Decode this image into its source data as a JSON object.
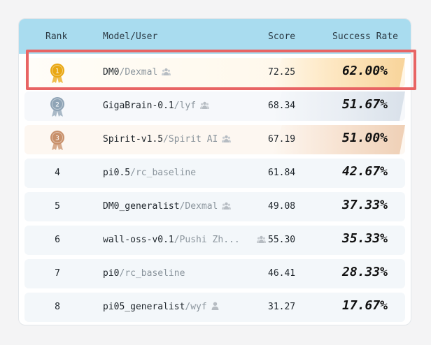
{
  "table": {
    "headers": {
      "rank": "Rank",
      "model": "Model/User",
      "score": "Score",
      "success_rate": "Success Rate"
    },
    "rows": [
      {
        "rank": "1",
        "model": "DM0",
        "org": "Dexmal",
        "icon": "team-icon",
        "score": "72.25",
        "rate": "62.00%",
        "medal": "gold"
      },
      {
        "rank": "2",
        "model": "GigaBrain-0.1",
        "org": "lyf",
        "icon": "team-icon",
        "score": "68.34",
        "rate": "51.67%",
        "medal": "silver"
      },
      {
        "rank": "3",
        "model": "Spirit-v1.5",
        "org": "Spirit AI",
        "icon": "team-icon",
        "score": "67.19",
        "rate": "51.00%",
        "medal": "bronze"
      },
      {
        "rank": "4",
        "model": "pi0.5",
        "org": "rc_baseline",
        "icon": "",
        "score": "61.84",
        "rate": "42.67%",
        "medal": ""
      },
      {
        "rank": "5",
        "model": "DM0_generalist",
        "org": "Dexmal",
        "icon": "team-icon",
        "score": "49.08",
        "rate": "37.33%",
        "medal": ""
      },
      {
        "rank": "6",
        "model": "wall-oss-v0.1",
        "org": "Pushi Zh...",
        "icon": "team-icon",
        "score": "55.30",
        "rate": "35.33%",
        "medal": ""
      },
      {
        "rank": "7",
        "model": "pi0",
        "org": "rc_baseline",
        "icon": "",
        "score": "46.41",
        "rate": "28.33%",
        "medal": ""
      },
      {
        "rank": "8",
        "model": "pi05_generalist",
        "org": "wyf",
        "icon": "user-icon",
        "score": "31.27",
        "rate": "17.67%",
        "medal": ""
      }
    ]
  },
  "colors": {
    "header_bg": "#a9dcef",
    "gold": "#e9a713",
    "silver": "#8fa4b6",
    "bronze": "#c8906a",
    "highlight_border": "#e86464"
  }
}
